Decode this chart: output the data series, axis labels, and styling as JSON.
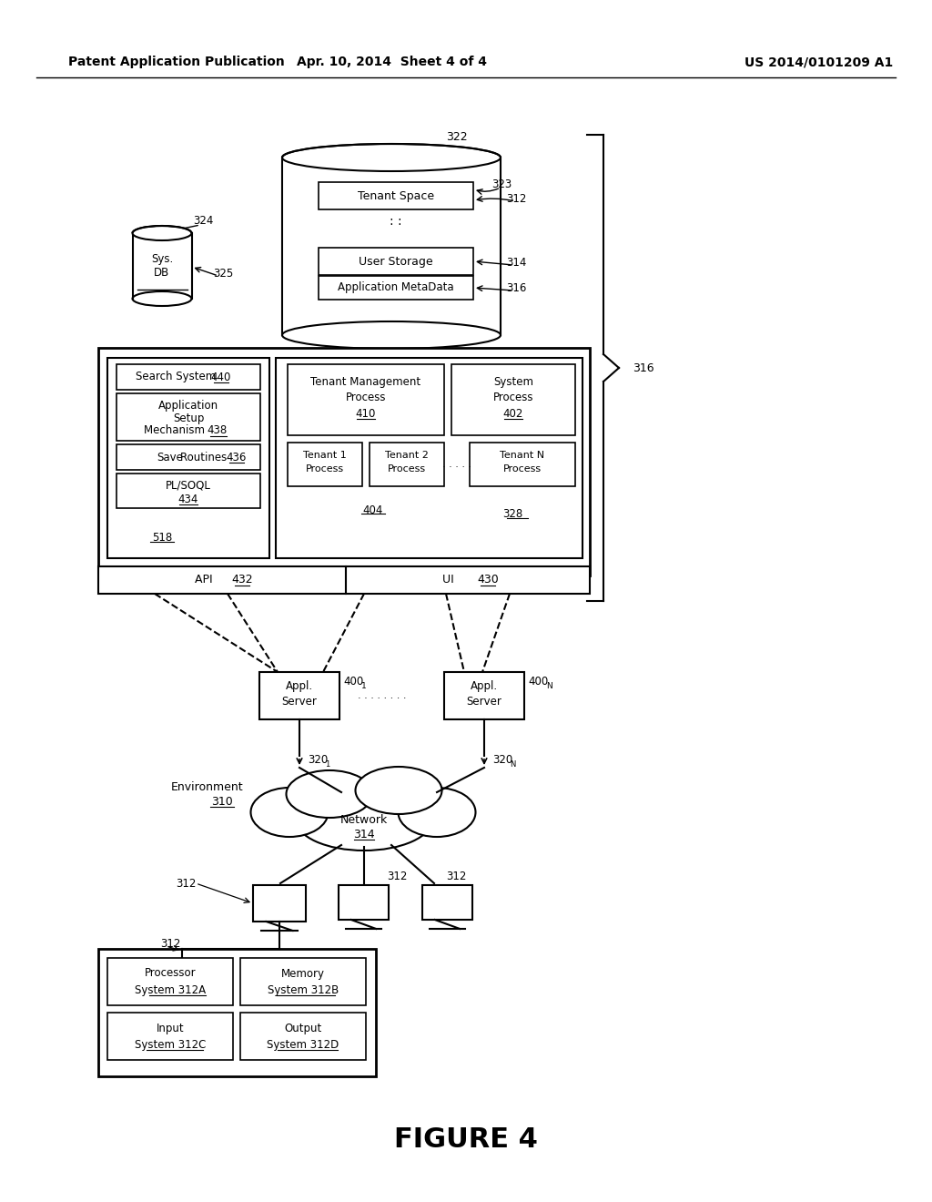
{
  "title": "FIGURE 4",
  "header_left": "Patent Application Publication",
  "header_mid": "Apr. 10, 2014  Sheet 4 of 4",
  "header_right": "US 2014/0101209 A1",
  "bg_color": "#ffffff",
  "line_color": "#000000"
}
